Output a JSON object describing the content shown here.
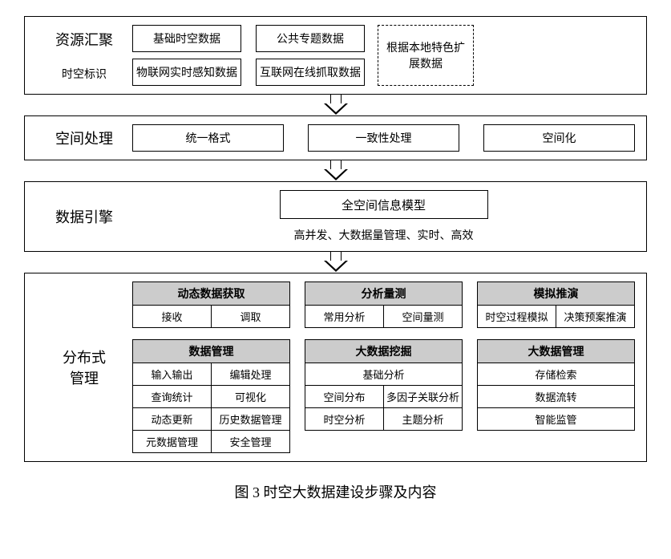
{
  "colors": {
    "border": "#000000",
    "bg": "#ffffff",
    "header_bg": "#cccccc"
  },
  "layer1": {
    "title": "资源汇聚",
    "subtitle": "时空标识",
    "boxes": [
      "基础时空数据",
      "公共专题数据",
      "物联网实时感知数据",
      "互联网在线抓取数据"
    ],
    "dashed": "根据本地特色扩展数据"
  },
  "layer2": {
    "title": "空间处理",
    "boxes": [
      "统一格式",
      "一致性处理",
      "空间化"
    ]
  },
  "layer3": {
    "title": "数据引擎",
    "model": "全空间信息模型",
    "desc": "高并发、大数据量管理、实时、高效"
  },
  "layer4": {
    "title": "分布式\n管理",
    "col1": {
      "t1": {
        "header": "动态数据获取",
        "rows": [
          [
            "接收",
            "调取"
          ]
        ]
      },
      "t2": {
        "header": "数据管理",
        "rows": [
          [
            "输入输出",
            "编辑处理"
          ],
          [
            "查询统计",
            "可视化"
          ],
          [
            "动态更新",
            "历史数据管理"
          ],
          [
            "元数据管理",
            "安全管理"
          ]
        ]
      }
    },
    "col2": {
      "t1": {
        "header": "分析量测",
        "rows": [
          [
            "常用分析",
            "空间量测"
          ]
        ]
      },
      "t2": {
        "header": "大数据挖掘",
        "full_first": "基础分析",
        "rows": [
          [
            "空间分布",
            "多因子关联分析"
          ],
          [
            "时空分析",
            "主题分析"
          ]
        ]
      }
    },
    "col3": {
      "t1": {
        "header": "模拟推演",
        "rows": [
          [
            "时空过程模拟",
            "决策预案推演"
          ]
        ]
      },
      "t2": {
        "header": "大数据管理",
        "fulls": [
          "存储检索",
          "数据流转",
          "智能监管"
        ]
      }
    }
  },
  "caption": "图 3 时空大数据建设步骤及内容"
}
